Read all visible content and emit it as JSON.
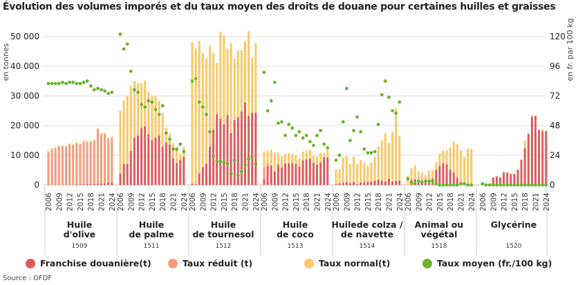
{
  "title": "Évolution des volumes imporés et du taux moyen des droits de douane pour certaines huilles et graisses",
  "source": "Source : OFDF",
  "chart_data": {
    "type": "bar",
    "stacked": true,
    "ylabel": "en tonnes",
    "y2label": "en fr. par 100 kg",
    "ylim": [
      0,
      50000
    ],
    "y2lim": [
      0,
      120
    ],
    "yticks": [
      "0",
      "10 000",
      "20 000",
      "30 000",
      "40 000",
      "50 000"
    ],
    "y2ticks": [
      "0",
      "24",
      "48",
      "72",
      "96",
      "120"
    ],
    "grid": true,
    "legend_position": "bottom",
    "years": [
      2006,
      2007,
      2008,
      2009,
      2010,
      2011,
      2012,
      2013,
      2014,
      2015,
      2016,
      2017,
      2018,
      2019,
      2020,
      2021,
      2022,
      2023,
      2024
    ],
    "year_tick_labels": [
      "2006",
      "2009",
      "2012",
      "2015",
      "2018",
      "2021",
      "2024"
    ],
    "colors": {
      "franchise": "#e05a5a",
      "reduit": "#f79a7a",
      "normal": "#fcc766",
      "moyen": "#6ab42d"
    },
    "legend": [
      {
        "key": "franchise",
        "label": "Franchise douanière(t)"
      },
      {
        "key": "reduit",
        "label": "Taux réduit (t)"
      },
      {
        "key": "normal",
        "label": "Taux normal(t)"
      },
      {
        "key": "moyen",
        "label": "Taux moyen (fr./100 kg)"
      }
    ],
    "groups": [
      {
        "name1": "Huile",
        "name2": "d'olive",
        "code": "1509",
        "franchise": [
          0,
          0,
          0,
          0,
          0,
          0,
          0,
          0,
          200,
          200,
          300,
          300,
          300,
          300,
          400,
          500,
          500,
          900,
          900
        ],
        "reduit": [
          11100,
          12000,
          12300,
          12900,
          12900,
          12800,
          13600,
          13400,
          13800,
          13500,
          14300,
          14200,
          14200,
          14600,
          18400,
          16600,
          16600,
          14700,
          15000
        ],
        "normal": [
          400,
          400,
          400,
          400,
          400,
          400,
          400,
          400,
          400,
          400,
          400,
          400,
          400,
          400,
          400,
          400,
          400,
          400,
          400
        ],
        "moyen": [
          82,
          82,
          82,
          82,
          83,
          82,
          83,
          83,
          82,
          82,
          83,
          84,
          80,
          77,
          78,
          77,
          76,
          74,
          75
        ]
      },
      {
        "name1": "Huile",
        "name2": "de palme",
        "code": "1511",
        "franchise": [
          3900,
          7100,
          7100,
          11500,
          16000,
          16700,
          19200,
          19800,
          17100,
          15000,
          16000,
          16700,
          12900,
          14300,
          13600,
          9000,
          7400,
          8500,
          9500
        ],
        "reduit": [
          0,
          0,
          0,
          0,
          0,
          0,
          0,
          0,
          0,
          0,
          0,
          0,
          0,
          0,
          0,
          0,
          0,
          0,
          0
        ],
        "normal": [
          21100,
          21400,
          22900,
          22000,
          19000,
          17600,
          15100,
          15400,
          14300,
          14900,
          14000,
          11700,
          11300,
          5000,
          3700,
          5000,
          5300,
          2000,
          3200
        ],
        "moyen": [
          122,
          110,
          114,
          92,
          77,
          75,
          65,
          63,
          68,
          67,
          61,
          57,
          64,
          42,
          37,
          29,
          29,
          33,
          27
        ]
      },
      {
        "name1": "Huile",
        "name2": "de tournesol",
        "code": "1512",
        "franchise": [
          500,
          300,
          3900,
          6000,
          7100,
          12900,
          18600,
          23900,
          22300,
          20500,
          23600,
          17500,
          21900,
          22800,
          24800,
          27800,
          23300,
          24300,
          24300
        ],
        "reduit": [
          0,
          0,
          0,
          0,
          0,
          0,
          0,
          0,
          0,
          0,
          0,
          0,
          0,
          0,
          0,
          0,
          0,
          0,
          0
        ],
        "normal": [
          47600,
          45700,
          44500,
          38500,
          35500,
          34100,
          25900,
          17200,
          29300,
          29900,
          22300,
          30300,
          20600,
          22500,
          20600,
          20700,
          28500,
          18600,
          23500
        ],
        "moyen": [
          84,
          86,
          67,
          63,
          57,
          43,
          23,
          19,
          19,
          18,
          17,
          9,
          20,
          8,
          11,
          16,
          21,
          23,
          17
        ]
      },
      {
        "name1": "Huile",
        "name2": "de coco",
        "code": "1513",
        "franchise": [
          1900,
          6400,
          6500,
          4600,
          6900,
          5900,
          7200,
          7300,
          7300,
          7100,
          6200,
          8300,
          8600,
          8900,
          7500,
          6900,
          7600,
          9300,
          9300
        ],
        "reduit": [
          4000,
          1000,
          0,
          0,
          0,
          0,
          0,
          0,
          0,
          0,
          0,
          0,
          0,
          0,
          0,
          0,
          0,
          0,
          0
        ],
        "normal": [
          5400,
          4100,
          5400,
          6300,
          4000,
          3900,
          3200,
          3400,
          3100,
          2800,
          2800,
          2900,
          3000,
          2900,
          2400,
          2700,
          3300,
          1400,
          2500
        ],
        "moyen": [
          91,
          60,
          68,
          83,
          50,
          51,
          40,
          49,
          46,
          40,
          43,
          38,
          40,
          35,
          32,
          40,
          44,
          33,
          30
        ]
      },
      {
        "name1": "Huilede colza /",
        "name2": "de navette",
        "code": "1514",
        "franchise": [
          300,
          600,
          800,
          1000,
          600,
          1000,
          300,
          800,
          900,
          1000,
          1200,
          1400,
          1800,
          1400,
          1200,
          2100,
          1200,
          1400,
          1500
        ],
        "reduit": [
          0,
          0,
          0,
          0,
          0,
          0,
          0,
          0,
          0,
          0,
          0,
          0,
          0,
          0,
          0,
          0,
          0,
          0,
          0
        ],
        "normal": [
          5000,
          4700,
          8300,
          8800,
          6500,
          8500,
          6800,
          7600,
          6500,
          5400,
          6400,
          8100,
          11100,
          13600,
          16300,
          12000,
          16600,
          24500,
          15100
        ],
        "moyen": [
          20,
          24,
          51,
          78,
          36,
          44,
          55,
          43,
          29,
          26,
          26,
          27,
          49,
          73,
          84,
          71,
          60,
          58,
          67
        ]
      },
      {
        "name1": "Animal ou",
        "name2": "végétal",
        "code": "1518",
        "franchise": [
          0,
          1700,
          1900,
          1600,
          1700,
          1400,
          1700,
          2200,
          5100,
          6500,
          7300,
          7000,
          5100,
          4200,
          2500,
          0,
          0,
          200,
          200
        ],
        "reduit": [
          0,
          0,
          0,
          0,
          0,
          0,
          0,
          0,
          0,
          0,
          0,
          0,
          0,
          0,
          0,
          0,
          0,
          0,
          0
        ],
        "normal": [
          3100,
          3900,
          4800,
          2900,
          2500,
          1900,
          3100,
          2800,
          2500,
          4200,
          4300,
          4600,
          7500,
          10400,
          11300,
          11500,
          9500,
          12000,
          11900
        ],
        "moyen": [
          5,
          2,
          1,
          3,
          2,
          3,
          3,
          3,
          1,
          0,
          0,
          0,
          0,
          0,
          0,
          1,
          1,
          0,
          0
        ]
      },
      {
        "name1": "Glycérine",
        "name2": "",
        "code": "1520",
        "franchise": [
          0,
          0,
          0,
          2500,
          2900,
          2500,
          4300,
          4200,
          3700,
          3700,
          5100,
          8400,
          12400,
          17200,
          22900,
          23300,
          18400,
          18100,
          18100
        ],
        "reduit": [
          0,
          0,
          0,
          0,
          0,
          0,
          0,
          0,
          0,
          0,
          0,
          0,
          0,
          0,
          0,
          0,
          0,
          0,
          0
        ],
        "normal": [
          0,
          0,
          0,
          0,
          0,
          0,
          0,
          0,
          0,
          0,
          200,
          300,
          2500,
          300,
          700,
          100,
          400,
          800,
          300
        ],
        "moyen": [
          1,
          0,
          0,
          0,
          0,
          0,
          0,
          0,
          0,
          0,
          0,
          0,
          0,
          0,
          0,
          0,
          0,
          0,
          0
        ]
      }
    ]
  }
}
